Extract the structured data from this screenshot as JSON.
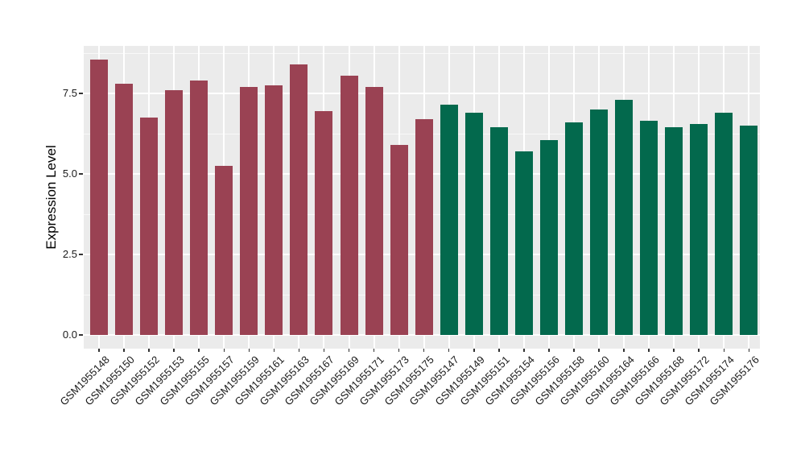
{
  "chart_data": {
    "type": "bar",
    "title": "",
    "xlabel": "",
    "ylabel": "Expression Level",
    "ylim": [
      0,
      8.98
    ],
    "yticks": [
      0,
      2.5,
      5,
      7.5
    ],
    "ytick_labels": [
      "0.0",
      "2.5",
      "5.0",
      "7.5"
    ],
    "y_minor_gridlines": [
      1.25,
      3.75,
      6.25,
      8.75
    ],
    "grid": "white major+minor horizontal lines and vertical category lines on grey panel",
    "legend_position": "none",
    "categories": [
      "GSM1955148",
      "GSM1955150",
      "GSM1955152",
      "GSM1955153",
      "GSM1955155",
      "GSM1955157",
      "GSM1955159",
      "GSM1955161",
      "GSM1955163",
      "GSM1955167",
      "GSM1955169",
      "GSM1955171",
      "GSM1955173",
      "GSM1955175",
      "GSM1955147",
      "GSM1955149",
      "GSM1955151",
      "GSM1955154",
      "GSM1955156",
      "GSM1955158",
      "GSM1955160",
      "GSM1955164",
      "GSM1955166",
      "GSM1955168",
      "GSM1955172",
      "GSM1955174",
      "GSM1955176"
    ],
    "values": [
      8.55,
      7.8,
      6.75,
      7.6,
      7.9,
      5.25,
      7.7,
      7.75,
      8.4,
      6.95,
      8.05,
      7.7,
      5.9,
      6.7,
      7.15,
      6.9,
      6.45,
      5.7,
      6.05,
      6.6,
      7.0,
      7.3,
      6.65,
      6.45,
      6.55,
      6.9,
      6.5
    ],
    "bar_groups": [
      "maroon",
      "maroon",
      "maroon",
      "maroon",
      "maroon",
      "maroon",
      "maroon",
      "maroon",
      "maroon",
      "maroon",
      "maroon",
      "maroon",
      "maroon",
      "maroon",
      "green",
      "green",
      "green",
      "green",
      "green",
      "green",
      "green",
      "green",
      "green",
      "green",
      "green",
      "green",
      "green"
    ],
    "group_colors": {
      "maroon": "#9A4253",
      "green": "#03694D"
    },
    "panel_background": "#EBEBEB",
    "gridline_color": "#FFFFFF",
    "axis_text_color": "#1A1A1A"
  }
}
